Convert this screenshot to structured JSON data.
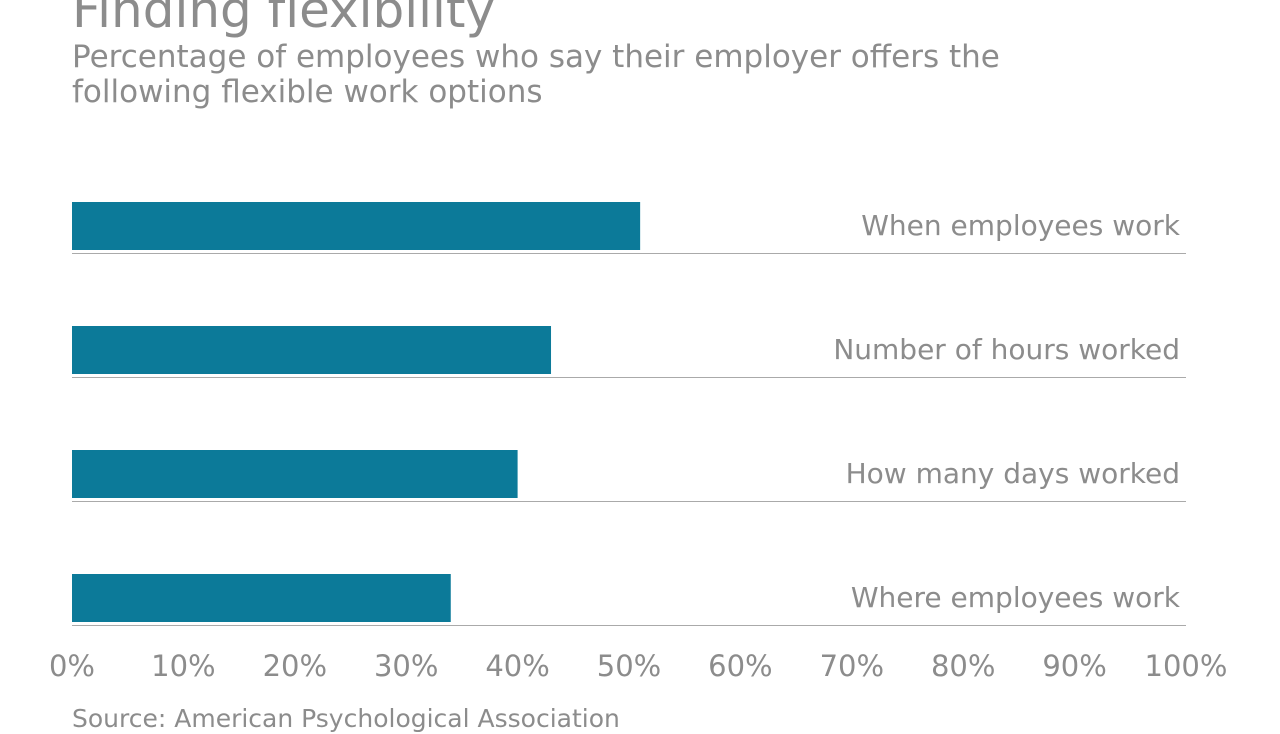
{
  "colors": {
    "bar": "#0c7a99",
    "text": "#8c8c8c",
    "rule": "#aaaaaa"
  },
  "chart_data": {
    "type": "bar",
    "orientation": "horizontal",
    "title": "Finding flexibility",
    "subtitle": "Percentage of employees who say their employer offers the following flexible work options",
    "categories": [
      "When employees work",
      "Number of hours worked",
      "How many days worked",
      "Where employees work"
    ],
    "values": [
      51,
      43,
      40,
      34
    ],
    "xlim": [
      0,
      100
    ],
    "xticks": [
      "0%",
      "10%",
      "20%",
      "30%",
      "40%",
      "50%",
      "60%",
      "70%",
      "80%",
      "90%",
      "100%"
    ],
    "grid": false,
    "source": "Source: American Psychological Association"
  }
}
